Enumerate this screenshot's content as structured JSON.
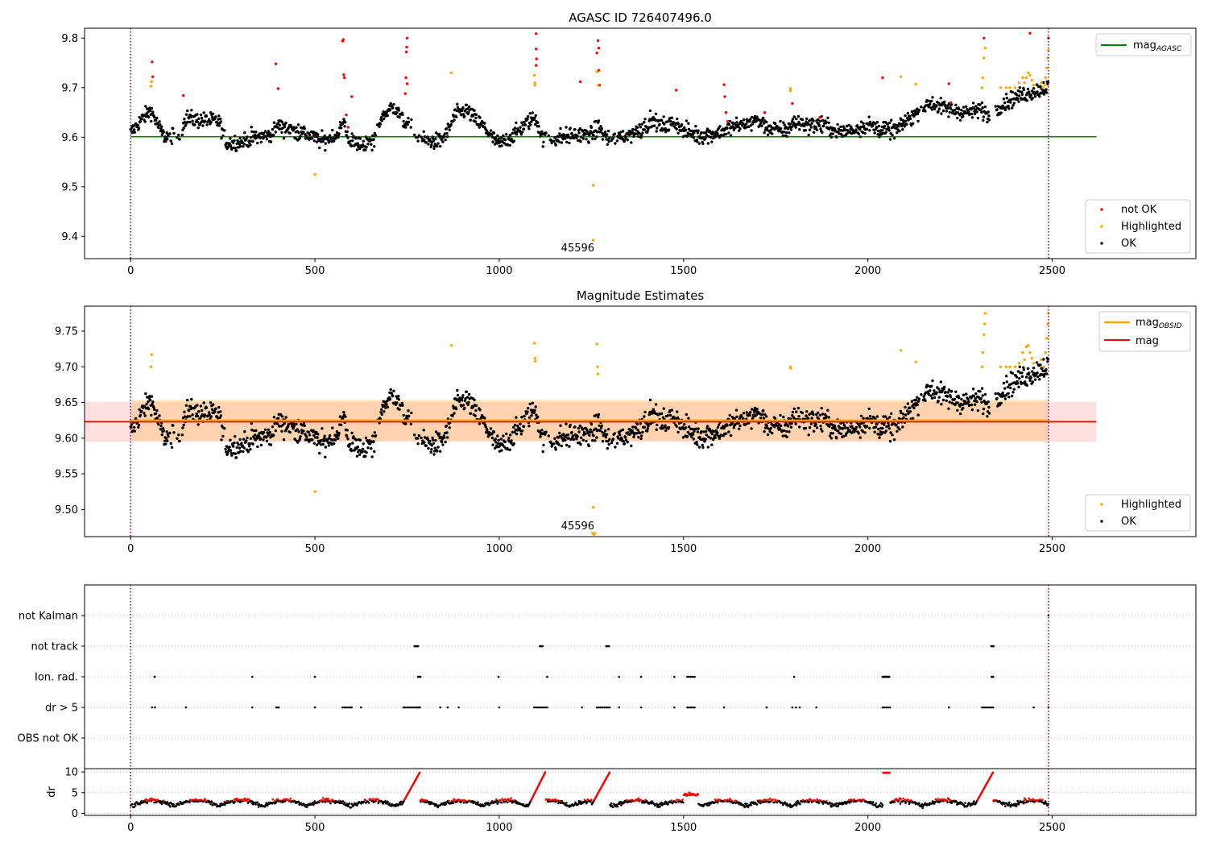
{
  "chart_data": [
    {
      "type": "scatter",
      "title": "AGASC ID 726407496.0",
      "xlabel": "",
      "ylabel": "",
      "xlim": [
        -125,
        2890
      ],
      "ylim": [
        9.355,
        9.82
      ],
      "x_ticks": [
        "0",
        "500",
        "1000",
        "1500",
        "2000",
        "2500"
      ],
      "y_ticks": [
        "9.4",
        "9.5",
        "9.6",
        "9.7",
        "9.8"
      ],
      "grid": false,
      "legend_top": {
        "entry": "mag",
        "subscript": "AGASC",
        "color": "#008000"
      },
      "legend_bottom": [
        "not OK",
        "Highlighted",
        "OK"
      ],
      "legend_top_placement": "top-right",
      "legend_bottom_placement": "bottom-right",
      "mag_agasc": 9.601,
      "obsid_boundaries": [
        0,
        2490
      ],
      "annotation": {
        "text": "45596",
        "x": 1250
      },
      "not_ok_points": [
        [
          58,
          9.752
        ],
        [
          60,
          9.722
        ],
        [
          143,
          9.684
        ],
        [
          394,
          9.748
        ],
        [
          400,
          9.698
        ],
        [
          575,
          9.794
        ],
        [
          577,
          9.797
        ],
        [
          578,
          9.726
        ],
        [
          580,
          9.72
        ],
        [
          585,
          9.645
        ],
        [
          590,
          9.62
        ],
        [
          600,
          9.682
        ],
        [
          745,
          9.688
        ],
        [
          747,
          9.72
        ],
        [
          748,
          9.772
        ],
        [
          749,
          9.782
        ],
        [
          750,
          9.8
        ],
        [
          750,
          9.708
        ],
        [
          1100,
          9.809
        ],
        [
          1100,
          9.778
        ],
        [
          1101,
          9.758
        ],
        [
          1100,
          9.745
        ],
        [
          1220,
          9.712
        ],
        [
          1265,
          9.77
        ],
        [
          1268,
          9.795
        ],
        [
          1270,
          9.78
        ],
        [
          1270,
          9.735
        ],
        [
          1272,
          9.705
        ],
        [
          1480,
          9.695
        ],
        [
          1610,
          9.706
        ],
        [
          1612,
          9.682
        ],
        [
          1615,
          9.65
        ],
        [
          1620,
          9.632
        ],
        [
          1720,
          9.65
        ],
        [
          1795,
          9.668
        ],
        [
          1870,
          9.64
        ],
        [
          2040,
          9.72
        ],
        [
          2220,
          9.708
        ],
        [
          2225,
          9.67
        ],
        [
          2315,
          9.8
        ],
        [
          2440,
          9.81
        ],
        [
          2490,
          9.8
        ]
      ],
      "highlighted_points": [
        [
          55,
          9.703
        ],
        [
          57,
          9.712
        ],
        [
          500,
          9.525
        ],
        [
          870,
          9.73
        ],
        [
          1095,
          9.725
        ],
        [
          1097,
          9.71
        ],
        [
          1097,
          9.705
        ],
        [
          1255,
          9.503
        ],
        [
          1265,
          9.732
        ],
        [
          1268,
          9.705
        ],
        [
          1790,
          9.698
        ],
        [
          1790,
          9.694
        ],
        [
          2090,
          9.722
        ],
        [
          2130,
          9.707
        ],
        [
          2310,
          9.7
        ],
        [
          2312,
          9.72
        ],
        [
          2315,
          9.76
        ],
        [
          2318,
          9.78
        ],
        [
          2360,
          9.7
        ],
        [
          2375,
          9.7
        ],
        [
          2385,
          9.7
        ],
        [
          2400,
          9.7
        ],
        [
          2410,
          9.71
        ],
        [
          2420,
          9.72
        ],
        [
          2425,
          9.71
        ],
        [
          2430,
          9.72
        ],
        [
          2435,
          9.73
        ],
        [
          2440,
          9.725
        ],
        [
          2445,
          9.715
        ],
        [
          2450,
          9.705
        ],
        [
          2470,
          9.71
        ],
        [
          2475,
          9.7
        ],
        [
          2480,
          9.705
        ],
        [
          2482,
          9.72
        ],
        [
          2485,
          9.74
        ],
        [
          2488,
          9.76
        ],
        [
          2490,
          9.775
        ]
      ]
    },
    {
      "type": "scatter",
      "title": "Magnitude Estimates",
      "xlabel": "",
      "ylabel": "",
      "xlim": [
        -125,
        2890
      ],
      "ylim": [
        9.462,
        9.785
      ],
      "x_ticks": [
        "0",
        "500",
        "1000",
        "1500",
        "2000",
        "2500"
      ],
      "y_ticks": [
        "9.50",
        "9.55",
        "9.60",
        "9.65",
        "9.70",
        "9.75"
      ],
      "grid": false,
      "legend_top": [
        {
          "entry": "mag",
          "subscript": "OBSID",
          "color": "#ffa500"
        },
        {
          "entry": "mag",
          "subscript": "",
          "color": "#ff0000"
        }
      ],
      "legend_bottom": [
        "Highlighted",
        "OK"
      ],
      "legend_top_placement": "top-right",
      "legend_bottom_placement": "bottom-right",
      "mag": 9.623,
      "mag_band": [
        9.595,
        9.651
      ],
      "mag_obsid": 9.625,
      "mag_obsid_band": [
        9.596,
        9.654
      ],
      "obsid_boundaries": [
        0,
        2490
      ],
      "annotation": {
        "text": "45596",
        "x": 1250,
        "marker_y": 9.466
      },
      "highlighted_points": [
        [
          55,
          9.7
        ],
        [
          57,
          9.717
        ],
        [
          500,
          9.525
        ],
        [
          870,
          9.73
        ],
        [
          1095,
          9.733
        ],
        [
          1097,
          9.712
        ],
        [
          1098,
          9.708
        ],
        [
          1255,
          9.503
        ],
        [
          1265,
          9.732
        ],
        [
          1267,
          9.7
        ],
        [
          1268,
          9.69
        ],
        [
          1790,
          9.7
        ],
        [
          1791,
          9.698
        ],
        [
          2090,
          9.723
        ],
        [
          2130,
          9.707
        ],
        [
          2310,
          9.7
        ],
        [
          2312,
          9.72
        ],
        [
          2315,
          9.745
        ],
        [
          2317,
          9.76
        ],
        [
          2318,
          9.775
        ],
        [
          2360,
          9.7
        ],
        [
          2375,
          9.7
        ],
        [
          2385,
          9.7
        ],
        [
          2400,
          9.7
        ],
        [
          2410,
          9.705
        ],
        [
          2420,
          9.72
        ],
        [
          2425,
          9.71
        ],
        [
          2430,
          9.728
        ],
        [
          2435,
          9.73
        ],
        [
          2440,
          9.72
        ],
        [
          2445,
          9.712
        ],
        [
          2450,
          9.705
        ],
        [
          2470,
          9.71
        ],
        [
          2478,
          9.7
        ],
        [
          2482,
          9.72
        ],
        [
          2485,
          9.74
        ],
        [
          2488,
          9.76
        ],
        [
          2490,
          9.775
        ]
      ]
    },
    {
      "type": "scatter",
      "title": "",
      "xlabel": "",
      "ylabel": "",
      "xlim": [
        -125,
        2890
      ],
      "categories": [
        "not Kalman",
        "not track",
        "Ion. rad.",
        "dr > 5",
        "OBS not OK"
      ],
      "grid": "horizontal dotted",
      "obsid_boundaries": [
        0,
        2490
      ],
      "flags": {
        "not Kalman": [
          2490
        ],
        "not track": [
          770,
          772,
          774,
          776,
          778,
          780,
          1110,
          1112,
          1114,
          1116,
          1118,
          1290,
          1292,
          1294,
          1296,
          1298,
          2335,
          2337,
          2339,
          2341
        ],
        "Ion. rad.": [
          65,
          330,
          500,
          780,
          782,
          784,
          786,
          998,
          1130,
          1325,
          1385,
          1475,
          1510,
          1515,
          1520,
          1525,
          1530,
          1800,
          2040,
          2042,
          2044,
          2046,
          2048,
          2050,
          2052,
          2054,
          2056,
          2058,
          2336,
          2338,
          2340
        ],
        "dr > 5": [
          58,
          66,
          150,
          330,
          395,
          400,
          402,
          500,
          575,
          580,
          585,
          590,
          595,
          600,
          625,
          740,
          745,
          750,
          755,
          760,
          765,
          770,
          775,
          778,
          782,
          785,
          840,
          860,
          890,
          1000,
          1095,
          1100,
          1105,
          1110,
          1115,
          1120,
          1125,
          1130,
          1225,
          1265,
          1270,
          1275,
          1280,
          1285,
          1290,
          1295,
          1300,
          1325,
          1385,
          1475,
          1510,
          1515,
          1520,
          1525,
          1530,
          1610,
          1725,
          1795,
          1805,
          1815,
          1860,
          2040,
          2045,
          2050,
          2055,
          2060,
          2220,
          2310,
          2315,
          2320,
          2325,
          2330,
          2335,
          2340,
          2450,
          2490
        ],
        "OBS not OK": []
      }
    },
    {
      "type": "scatter",
      "title": "",
      "xlabel": "",
      "ylabel": "dr",
      "xlim": [
        -125,
        2890
      ],
      "ylim": [
        -0.5,
        10.8
      ],
      "y_ticks": [
        "0",
        "5",
        "10"
      ],
      "x_ticks": [
        "0",
        "500",
        "1000",
        "1500",
        "2000",
        "2500"
      ],
      "grid": "horizontal dotted",
      "obsid_boundaries": [
        0,
        2490
      ]
    }
  ]
}
